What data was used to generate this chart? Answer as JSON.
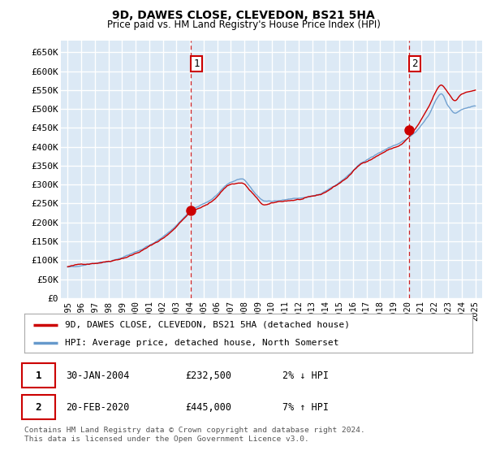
{
  "title": "9D, DAWES CLOSE, CLEVEDON, BS21 5HA",
  "subtitle": "Price paid vs. HM Land Registry's House Price Index (HPI)",
  "ylabel_ticks": [
    "£0",
    "£50K",
    "£100K",
    "£150K",
    "£200K",
    "£250K",
    "£300K",
    "£350K",
    "£400K",
    "£450K",
    "£500K",
    "£550K",
    "£600K",
    "£650K"
  ],
  "ytick_values": [
    0,
    50000,
    100000,
    150000,
    200000,
    250000,
    300000,
    350000,
    400000,
    450000,
    500000,
    550000,
    600000,
    650000
  ],
  "ylim": [
    0,
    680000
  ],
  "xlim_start": 1994.5,
  "xlim_end": 2025.5,
  "background_color": "#dce9f5",
  "grid_color": "#ffffff",
  "hpi_color": "#6699cc",
  "price_color": "#cc0000",
  "marker1_x": 2004.08,
  "marker1_y": 232500,
  "marker2_x": 2020.13,
  "marker2_y": 445000,
  "vline_color": "#cc0000",
  "annotation1": "1",
  "annotation2": "2",
  "legend_label1": "9D, DAWES CLOSE, CLEVEDON, BS21 5HA (detached house)",
  "legend_label2": "HPI: Average price, detached house, North Somerset",
  "note1_num": "1",
  "note1_date": "30-JAN-2004",
  "note1_price": "£232,500",
  "note1_hpi": "2% ↓ HPI",
  "note2_num": "2",
  "note2_date": "20-FEB-2020",
  "note2_price": "£445,000",
  "note2_hpi": "7% ↑ HPI",
  "footer": "Contains HM Land Registry data © Crown copyright and database right 2024.\nThis data is licensed under the Open Government Licence v3.0.",
  "xtick_years": [
    1995,
    1996,
    1997,
    1998,
    1999,
    2000,
    2001,
    2002,
    2003,
    2004,
    2005,
    2006,
    2007,
    2008,
    2009,
    2010,
    2011,
    2012,
    2013,
    2014,
    2015,
    2016,
    2017,
    2018,
    2019,
    2020,
    2021,
    2022,
    2023,
    2024,
    2025
  ]
}
